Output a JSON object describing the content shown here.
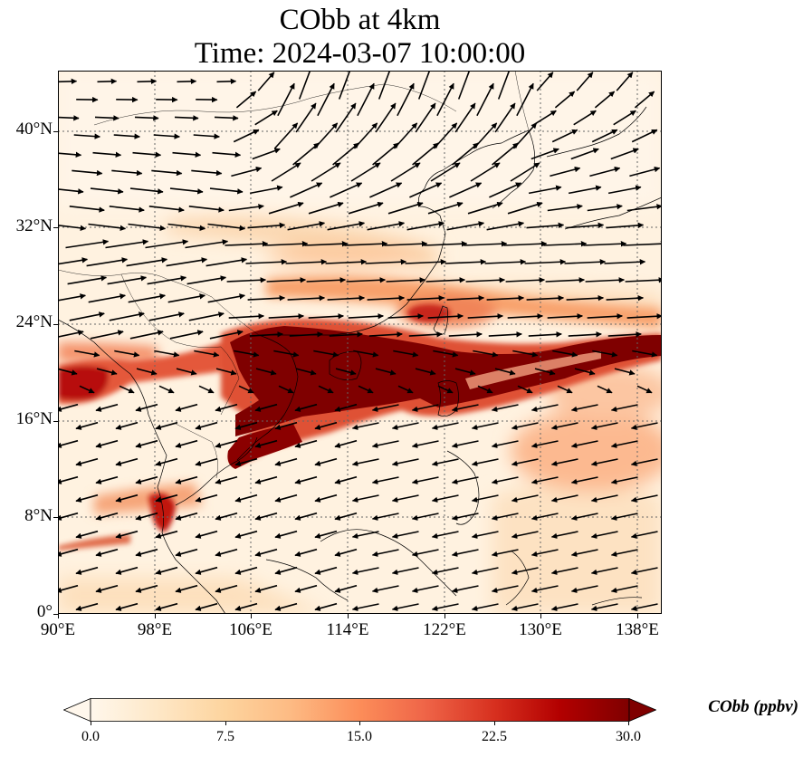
{
  "title": {
    "line1": "CObb at 4km",
    "line2": "Time: 2024-03-07 10:00:00"
  },
  "map": {
    "projection": "PlateCarree",
    "extent": {
      "lon_min": 90,
      "lon_max": 140,
      "lat_min": 0,
      "lat_max": 45
    },
    "gridlines": "dotted",
    "coastlines": true,
    "borders": true
  },
  "axes": {
    "x_ticks": [
      "90°E",
      "98°E",
      "106°E",
      "114°E",
      "122°E",
      "130°E",
      "138°E"
    ],
    "y_ticks": [
      "0°",
      "8°N",
      "16°N",
      "24°N",
      "32°N",
      "40°N"
    ]
  },
  "colorbar": {
    "label": "CObb (ppbv)",
    "ticks": [
      "0.0",
      "7.5",
      "15.0",
      "22.5",
      "30.0"
    ],
    "range": [
      0,
      30
    ],
    "extend": "both",
    "colormap": "OrRd",
    "colors": [
      "#fff7ec",
      "#fee8c8",
      "#fdd49e",
      "#fdbb84",
      "#fc8d59",
      "#ef6548",
      "#d7301f",
      "#b30000",
      "#7f0000"
    ]
  },
  "wind_vectors": true
}
